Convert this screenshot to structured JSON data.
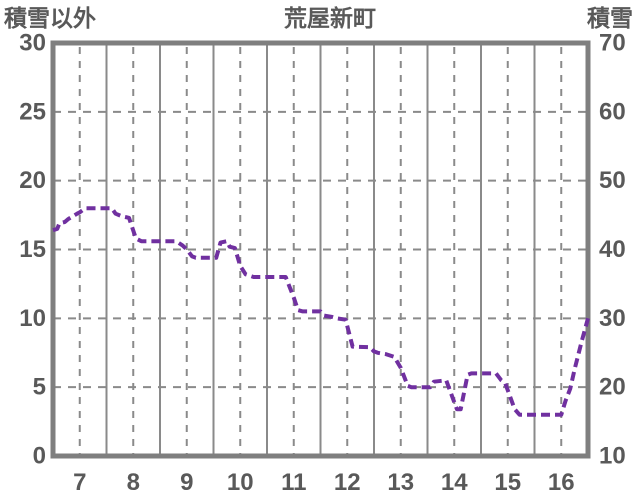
{
  "header": {
    "left_axis_title": "積雪以外",
    "station_title": "荒屋新町",
    "right_axis_title": "積雪"
  },
  "colors": {
    "line": "#7030A0",
    "border": "#7f7f7f",
    "grid": "#8a8a8a",
    "text": "#595959"
  },
  "chart_data": {
    "type": "line",
    "title": "荒屋新町",
    "left_axis": {
      "label": "積雪以外",
      "min": 0,
      "max": 30,
      "ticks": [
        0,
        5,
        10,
        15,
        20,
        25,
        30
      ]
    },
    "right_axis": {
      "label": "積雪",
      "min": 10,
      "max": 70,
      "ticks": [
        10,
        20,
        30,
        40,
        50,
        60,
        70
      ]
    },
    "x_axis": {
      "min": 6.5,
      "max": 16.5,
      "ticks": [
        7,
        8,
        9,
        10,
        11,
        12,
        13,
        14,
        15,
        16
      ],
      "tick_labels": [
        "7",
        "8",
        "9",
        "10",
        "11",
        "12",
        "13",
        "14",
        "15",
        "16"
      ],
      "grid_dashed_at_hours": true,
      "grid_solid_at_half_hours": true
    },
    "legend": "none",
    "series": [
      {
        "name": "snow-depth-line",
        "style": "dashed",
        "color": "#7030A0",
        "units": "left-axis",
        "points": [
          [
            6.5,
            16.4
          ],
          [
            6.58,
            16.5
          ],
          [
            6.62,
            16.9
          ],
          [
            6.72,
            17.0
          ],
          [
            6.78,
            17.2
          ],
          [
            6.95,
            17.6
          ],
          [
            7.0,
            17.7
          ],
          [
            7.1,
            18.0
          ],
          [
            7.6,
            18.0
          ],
          [
            7.67,
            17.6
          ],
          [
            7.8,
            17.4
          ],
          [
            7.92,
            17.3
          ],
          [
            8.05,
            15.8
          ],
          [
            8.15,
            15.6
          ],
          [
            8.8,
            15.6
          ],
          [
            8.92,
            15.3
          ],
          [
            9.0,
            15.0
          ],
          [
            9.1,
            14.5
          ],
          [
            9.17,
            14.4
          ],
          [
            9.55,
            14.4
          ],
          [
            9.63,
            15.5
          ],
          [
            9.75,
            15.6
          ],
          [
            9.8,
            15.2
          ],
          [
            9.9,
            15.1
          ],
          [
            10.0,
            13.8
          ],
          [
            10.1,
            13.2
          ],
          [
            10.25,
            13.0
          ],
          [
            10.85,
            13.0
          ],
          [
            11.0,
            11.5
          ],
          [
            11.08,
            10.6
          ],
          [
            11.17,
            10.5
          ],
          [
            11.5,
            10.5
          ],
          [
            11.57,
            10.2
          ],
          [
            11.72,
            10.1
          ],
          [
            11.8,
            10.0
          ],
          [
            11.97,
            9.9
          ],
          [
            12.1,
            7.95
          ],
          [
            12.42,
            7.9
          ],
          [
            12.5,
            7.6
          ],
          [
            12.57,
            7.5
          ],
          [
            12.72,
            7.4
          ],
          [
            12.88,
            7.2
          ],
          [
            13.0,
            6.4
          ],
          [
            13.13,
            5.1
          ],
          [
            13.2,
            5.0
          ],
          [
            13.55,
            5.0
          ],
          [
            13.62,
            5.4
          ],
          [
            13.85,
            5.5
          ],
          [
            14.0,
            3.9
          ],
          [
            14.05,
            3.4
          ],
          [
            14.12,
            3.4
          ],
          [
            14.25,
            5.9
          ],
          [
            14.32,
            6.0
          ],
          [
            14.78,
            6.0
          ],
          [
            14.88,
            5.5
          ],
          [
            14.95,
            5.3
          ],
          [
            15.13,
            3.4
          ],
          [
            15.22,
            3.0
          ],
          [
            16.0,
            3.0
          ],
          [
            16.08,
            4.0
          ],
          [
            16.17,
            4.9
          ],
          [
            16.25,
            6.3
          ],
          [
            16.38,
            8.3
          ],
          [
            16.5,
            10.0
          ]
        ]
      }
    ]
  }
}
